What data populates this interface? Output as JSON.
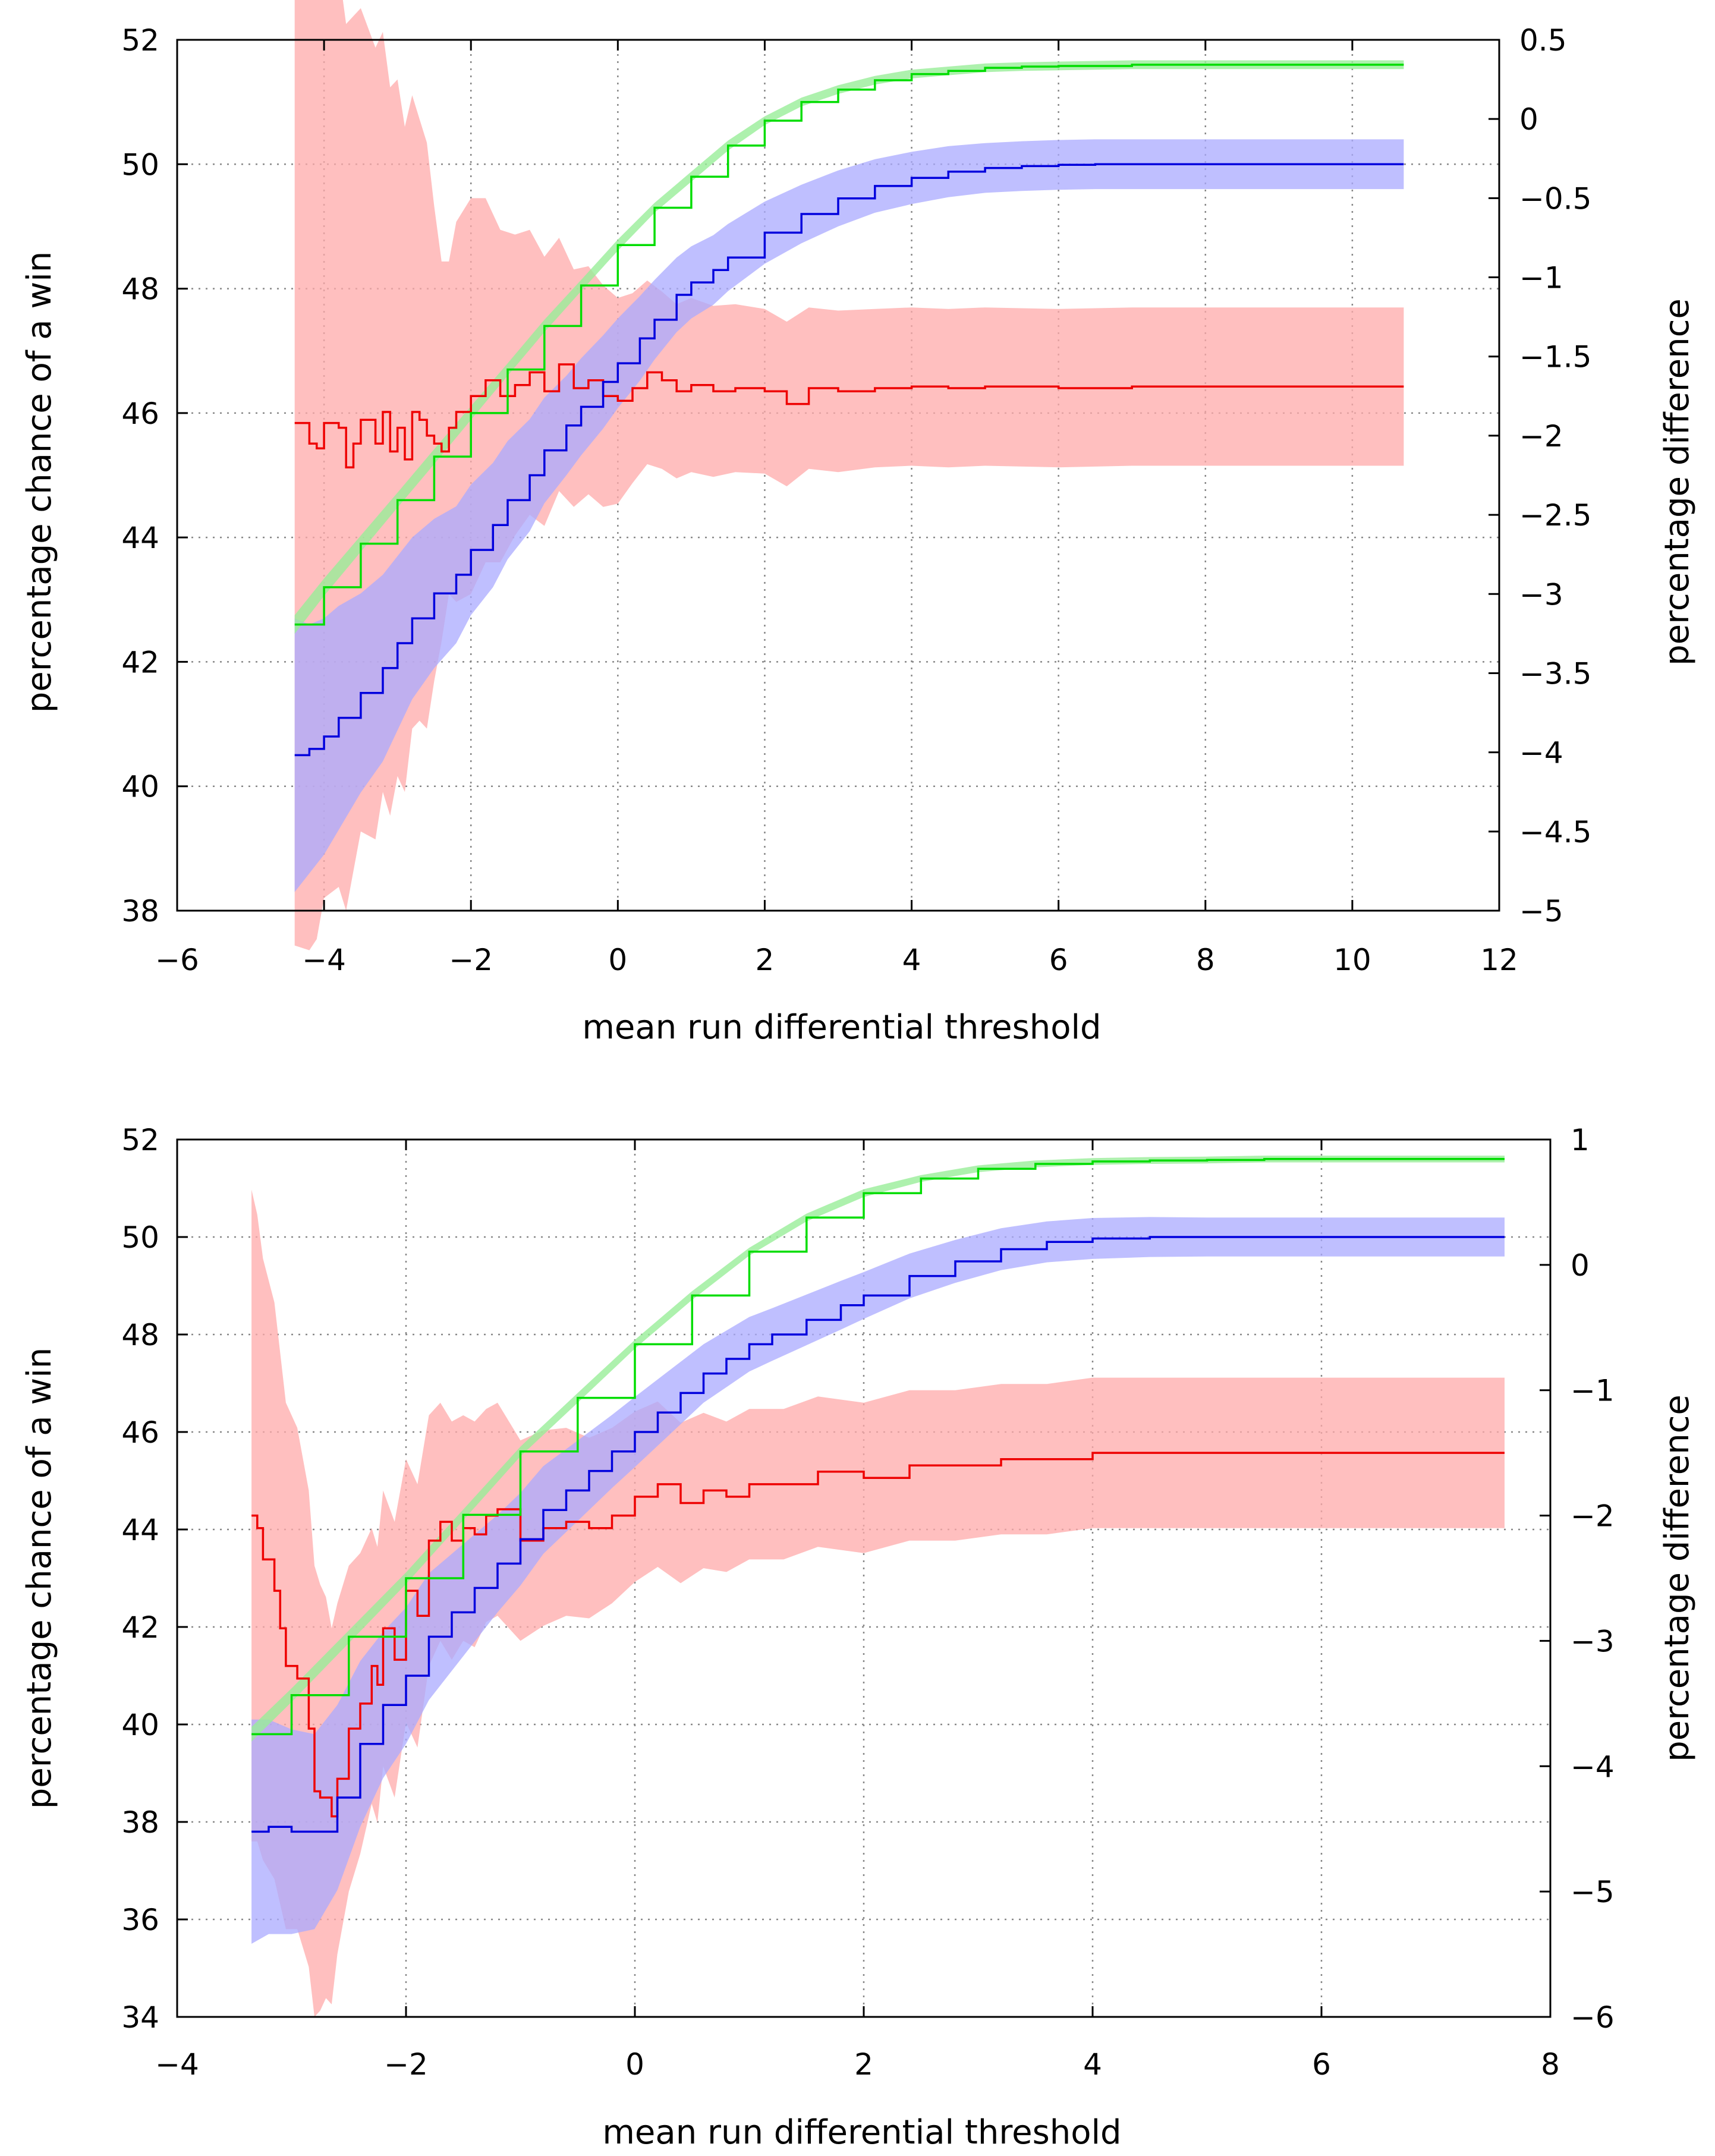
{
  "chart_data": [
    {
      "type": "line",
      "title": "",
      "xlabel": "mean run differential threshold",
      "ylabel": "percentage chance of a win",
      "y2label": "percentage difference",
      "xlim": [
        -6,
        12
      ],
      "ylim": [
        38,
        52
      ],
      "y2lim": [
        -5,
        0.5
      ],
      "xticks": [
        "−6",
        "−4",
        "−2",
        "0",
        "2",
        "4",
        "6",
        "8",
        "10",
        "12"
      ],
      "yticks": [
        "38",
        "40",
        "42",
        "44",
        "46",
        "48",
        "50",
        "52"
      ],
      "y2ticks": [
        "−5",
        "−4.5",
        "−4",
        "−3.5",
        "−3",
        "−2.5",
        "−2",
        "−1.5",
        "−1",
        "−0.5",
        "0",
        "0.5"
      ],
      "grid": true,
      "series": [
        {
          "name": "green",
          "axis": "left",
          "color": "#00dd00",
          "band_color": "#99ee99",
          "x": [
            -4.4,
            -4.0,
            -3.5,
            -3.0,
            -2.5,
            -2.0,
            -1.5,
            -1.0,
            -0.5,
            0.0,
            0.5,
            1.0,
            1.5,
            2.0,
            2.5,
            3.0,
            3.5,
            4.0,
            4.5,
            5.0,
            5.5,
            6.0,
            7.0,
            8.0,
            9.0,
            10.0,
            10.7
          ],
          "values": [
            42.6,
            43.2,
            43.9,
            44.6,
            45.3,
            46.0,
            46.7,
            47.4,
            48.05,
            48.7,
            49.3,
            49.8,
            50.3,
            50.7,
            51.0,
            51.2,
            51.35,
            51.45,
            51.5,
            51.55,
            51.57,
            51.58,
            51.6,
            51.6,
            51.6,
            51.6,
            51.6
          ],
          "err": [
            0.15,
            0.14,
            0.13,
            0.12,
            0.12,
            0.11,
            0.1,
            0.1,
            0.09,
            0.09,
            0.08,
            0.08,
            0.08,
            0.07,
            0.07,
            0.07,
            0.07,
            0.07,
            0.07,
            0.07,
            0.07,
            0.07,
            0.07,
            0.07,
            0.07,
            0.07,
            0.07
          ]
        },
        {
          "name": "blue",
          "axis": "left",
          "color": "#0000dd",
          "band_color": "#aaaaff",
          "x": [
            -4.4,
            -4.2,
            -4.0,
            -3.8,
            -3.5,
            -3.2,
            -3.0,
            -2.8,
            -2.5,
            -2.2,
            -2.0,
            -1.7,
            -1.5,
            -1.2,
            -1.0,
            -0.7,
            -0.5,
            -0.2,
            0.0,
            0.3,
            0.5,
            0.8,
            1.0,
            1.3,
            1.5,
            2.0,
            2.5,
            3.0,
            3.5,
            4.0,
            4.5,
            5.0,
            5.5,
            6.0,
            6.5,
            7.0,
            8.0,
            9.0,
            10.0,
            10.7
          ],
          "values": [
            40.5,
            40.6,
            40.8,
            41.1,
            41.5,
            41.9,
            42.3,
            42.7,
            43.1,
            43.4,
            43.8,
            44.2,
            44.6,
            45.0,
            45.4,
            45.8,
            46.1,
            46.5,
            46.8,
            47.2,
            47.5,
            47.9,
            48.1,
            48.3,
            48.5,
            48.9,
            49.2,
            49.45,
            49.65,
            49.78,
            49.88,
            49.94,
            49.97,
            49.99,
            50.0,
            50.0,
            50.0,
            50.0,
            50.0,
            50.0
          ],
          "err": [
            2.2,
            2.0,
            1.9,
            1.8,
            1.6,
            1.5,
            1.4,
            1.3,
            1.2,
            1.1,
            1.05,
            1.0,
            0.95,
            0.9,
            0.85,
            0.8,
            0.78,
            0.75,
            0.72,
            0.68,
            0.64,
            0.6,
            0.58,
            0.56,
            0.54,
            0.5,
            0.47,
            0.45,
            0.43,
            0.42,
            0.41,
            0.4,
            0.4,
            0.4,
            0.4,
            0.4,
            0.4,
            0.4,
            0.4,
            0.4
          ]
        },
        {
          "name": "red",
          "axis": "right",
          "color": "#ee0000",
          "band_color": "#ffaaaa",
          "x": [
            -4.4,
            -4.2,
            -4.1,
            -4.0,
            -3.8,
            -3.7,
            -3.6,
            -3.5,
            -3.3,
            -3.2,
            -3.1,
            -3.0,
            -2.9,
            -2.8,
            -2.7,
            -2.6,
            -2.5,
            -2.4,
            -2.3,
            -2.2,
            -2.0,
            -1.8,
            -1.6,
            -1.4,
            -1.2,
            -1.0,
            -0.8,
            -0.6,
            -0.4,
            -0.2,
            0.0,
            0.2,
            0.4,
            0.6,
            0.8,
            1.0,
            1.3,
            1.6,
            2.0,
            2.3,
            2.6,
            3.0,
            3.5,
            4.0,
            4.5,
            5.0,
            6.0,
            7.0,
            8.0,
            9.0,
            10.0,
            10.7
          ],
          "values": [
            -1.92,
            -2.05,
            -2.08,
            -1.92,
            -1.95,
            -2.2,
            -2.05,
            -1.9,
            -2.05,
            -1.85,
            -2.1,
            -1.95,
            -2.15,
            -1.85,
            -1.9,
            -2.0,
            -2.05,
            -2.1,
            -1.95,
            -1.85,
            -1.75,
            -1.65,
            -1.75,
            -1.68,
            -1.6,
            -1.72,
            -1.55,
            -1.7,
            -1.65,
            -1.75,
            -1.78,
            -1.7,
            -1.6,
            -1.65,
            -1.72,
            -1.68,
            -1.72,
            -1.7,
            -1.72,
            -1.8,
            -1.7,
            -1.72,
            -1.7,
            -1.69,
            -1.7,
            -1.69,
            -1.7,
            -1.69,
            -1.69,
            -1.69,
            -1.69,
            -1.69
          ],
          "err": [
            3.3,
            3.2,
            3.1,
            3.0,
            2.9,
            2.8,
            2.7,
            2.6,
            2.5,
            2.4,
            2.3,
            2.2,
            2.1,
            2.0,
            1.9,
            1.85,
            1.5,
            1.2,
            1.05,
            1.2,
            1.25,
            1.15,
            1.05,
            0.95,
            0.9,
            0.85,
            0.8,
            0.75,
            0.72,
            0.7,
            0.65,
            0.6,
            0.58,
            0.56,
            0.55,
            0.55,
            0.54,
            0.53,
            0.52,
            0.52,
            0.51,
            0.51,
            0.5,
            0.5,
            0.5,
            0.5,
            0.5,
            0.5,
            0.5,
            0.5,
            0.5,
            0.5
          ]
        }
      ]
    },
    {
      "type": "line",
      "title": "",
      "xlabel": "mean run differential threshold",
      "ylabel": "percentage chance of a win",
      "y2label": "percentage difference",
      "xlim": [
        -4,
        8
      ],
      "ylim": [
        34,
        52
      ],
      "y2lim": [
        -6,
        1
      ],
      "xticks": [
        "−4",
        "−2",
        "0",
        "2",
        "4",
        "6",
        "8"
      ],
      "yticks": [
        "34",
        "36",
        "38",
        "40",
        "42",
        "44",
        "46",
        "48",
        "50",
        "52"
      ],
      "y2ticks": [
        "−6",
        "−5",
        "−4",
        "−3",
        "−2",
        "−1",
        "0",
        "1"
      ],
      "grid": true,
      "series": [
        {
          "name": "green",
          "axis": "left",
          "color": "#00dd00",
          "band_color": "#99ee99",
          "x": [
            -3.35,
            -3.0,
            -2.5,
            -2.0,
            -1.5,
            -1.0,
            -0.5,
            0.0,
            0.5,
            1.0,
            1.5,
            2.0,
            2.5,
            3.0,
            3.5,
            4.0,
            4.5,
            5.0,
            5.5,
            6.0,
            6.5,
            7.0,
            7.6
          ],
          "values": [
            39.8,
            40.6,
            41.8,
            43.0,
            44.3,
            45.6,
            46.7,
            47.8,
            48.8,
            49.7,
            50.4,
            50.9,
            51.2,
            51.4,
            51.5,
            51.55,
            51.57,
            51.58,
            51.6,
            51.6,
            51.6,
            51.6,
            51.6
          ],
          "err": [
            0.15,
            0.14,
            0.13,
            0.12,
            0.11,
            0.1,
            0.1,
            0.09,
            0.09,
            0.08,
            0.08,
            0.08,
            0.07,
            0.07,
            0.07,
            0.07,
            0.07,
            0.07,
            0.07,
            0.07,
            0.07,
            0.07,
            0.07
          ]
        },
        {
          "name": "blue",
          "axis": "left",
          "color": "#0000dd",
          "band_color": "#aaaaff",
          "x": [
            -3.35,
            -3.2,
            -3.0,
            -2.8,
            -2.6,
            -2.4,
            -2.2,
            -2.0,
            -1.8,
            -1.6,
            -1.4,
            -1.2,
            -1.0,
            -0.8,
            -0.6,
            -0.4,
            -0.2,
            0.0,
            0.2,
            0.4,
            0.6,
            0.8,
            1.0,
            1.2,
            1.5,
            1.8,
            2.0,
            2.4,
            2.8,
            3.2,
            3.6,
            4.0,
            4.5,
            5.0,
            5.5,
            6.0,
            7.0,
            7.6
          ],
          "values": [
            37.8,
            37.9,
            37.8,
            37.8,
            38.5,
            39.6,
            40.4,
            41.0,
            41.8,
            42.3,
            42.8,
            43.3,
            43.8,
            44.4,
            44.8,
            45.2,
            45.6,
            46.0,
            46.4,
            46.8,
            47.2,
            47.5,
            47.8,
            48.0,
            48.3,
            48.6,
            48.8,
            49.2,
            49.5,
            49.75,
            49.9,
            49.97,
            50.0,
            50.0,
            50.0,
            50.0,
            50.0,
            50.0
          ],
          "err": [
            2.3,
            2.2,
            2.1,
            2.0,
            1.9,
            1.7,
            1.5,
            1.4,
            1.3,
            1.2,
            1.1,
            1.0,
            0.95,
            0.9,
            0.85,
            0.8,
            0.75,
            0.72,
            0.68,
            0.64,
            0.6,
            0.58,
            0.56,
            0.54,
            0.52,
            0.5,
            0.48,
            0.46,
            0.44,
            0.43,
            0.42,
            0.42,
            0.41,
            0.4,
            0.4,
            0.4,
            0.4,
            0.4
          ]
        },
        {
          "name": "red",
          "axis": "right",
          "color": "#ee0000",
          "band_color": "#ffaaaa",
          "x": [
            -3.35,
            -3.3,
            -3.25,
            -3.15,
            -3.1,
            -3.05,
            -2.95,
            -2.85,
            -2.8,
            -2.75,
            -2.7,
            -2.65,
            -2.6,
            -2.5,
            -2.4,
            -2.3,
            -2.25,
            -2.2,
            -2.1,
            -2.0,
            -1.9,
            -1.8,
            -1.7,
            -1.6,
            -1.5,
            -1.4,
            -1.3,
            -1.2,
            -1.0,
            -0.8,
            -0.6,
            -0.4,
            -0.2,
            0.0,
            0.2,
            0.4,
            0.6,
            0.8,
            1.0,
            1.3,
            1.6,
            2.0,
            2.4,
            2.8,
            3.2,
            3.6,
            4.0,
            4.5,
            5.0,
            6.0,
            7.0,
            7.6
          ],
          "values": [
            -2.0,
            -2.1,
            -2.35,
            -2.6,
            -2.9,
            -3.2,
            -3.3,
            -3.7,
            -4.2,
            -4.25,
            -4.25,
            -4.4,
            -4.1,
            -3.7,
            -3.5,
            -3.2,
            -3.35,
            -2.9,
            -3.15,
            -2.6,
            -2.8,
            -2.2,
            -2.05,
            -2.2,
            -2.1,
            -2.15,
            -2.0,
            -1.95,
            -2.2,
            -2.1,
            -2.05,
            -2.1,
            -2.0,
            -1.85,
            -1.75,
            -1.9,
            -1.8,
            -1.85,
            -1.75,
            -1.75,
            -1.65,
            -1.7,
            -1.6,
            -1.6,
            -1.55,
            -1.55,
            -1.5,
            -1.5,
            -1.5,
            -1.5,
            -1.5,
            -1.5
          ],
          "err": [
            2.6,
            2.5,
            2.4,
            2.3,
            2.2,
            2.1,
            2.0,
            1.9,
            1.8,
            1.7,
            1.6,
            1.5,
            1.4,
            1.3,
            1.2,
            1.1,
            1.1,
            1.1,
            1.1,
            1.05,
            1.05,
            1.0,
            0.95,
            0.95,
            0.9,
            0.9,
            0.85,
            0.85,
            0.8,
            0.78,
            0.75,
            0.72,
            0.7,
            0.68,
            0.66,
            0.64,
            0.62,
            0.6,
            0.6,
            0.6,
            0.6,
            0.6,
            0.6,
            0.6,
            0.6,
            0.6,
            0.6,
            0.6,
            0.6,
            0.6,
            0.6,
            0.6
          ]
        }
      ]
    }
  ]
}
